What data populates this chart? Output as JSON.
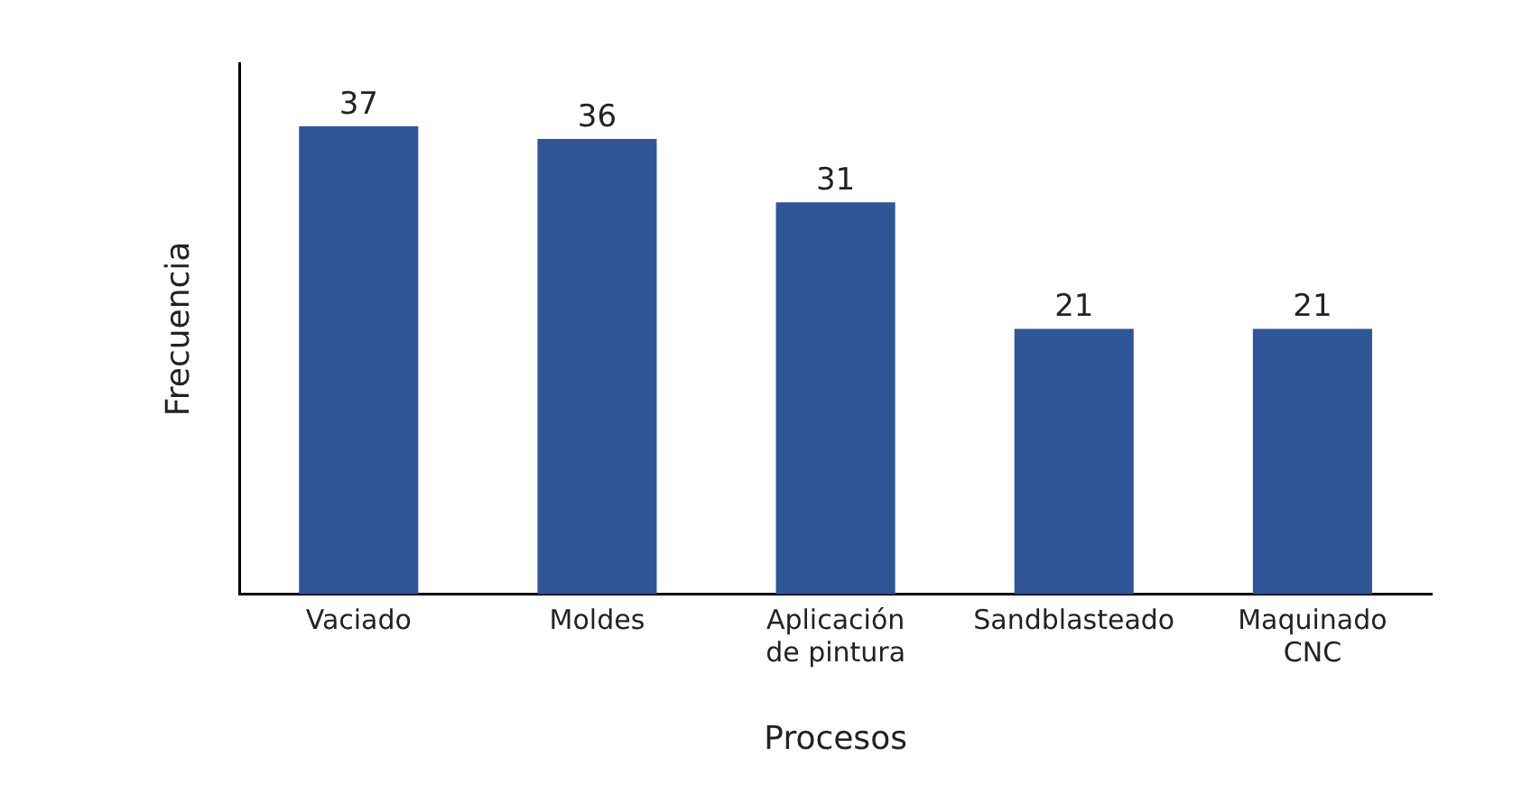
{
  "chart_data": {
    "type": "bar",
    "xlabel": "Procesos",
    "ylabel": "Frecuencia",
    "categories": [
      "Vaciado",
      "Moldes",
      "Aplicación\nde pintura",
      "Sandblasteado",
      "Maquinado\nCNC"
    ],
    "values": [
      37,
      36,
      31,
      21,
      21
    ],
    "color": "#2f5597",
    "ylim": [
      0,
      42
    ],
    "data_labels": true,
    "grid": false,
    "legend": false,
    "tick_labels": "x"
  }
}
